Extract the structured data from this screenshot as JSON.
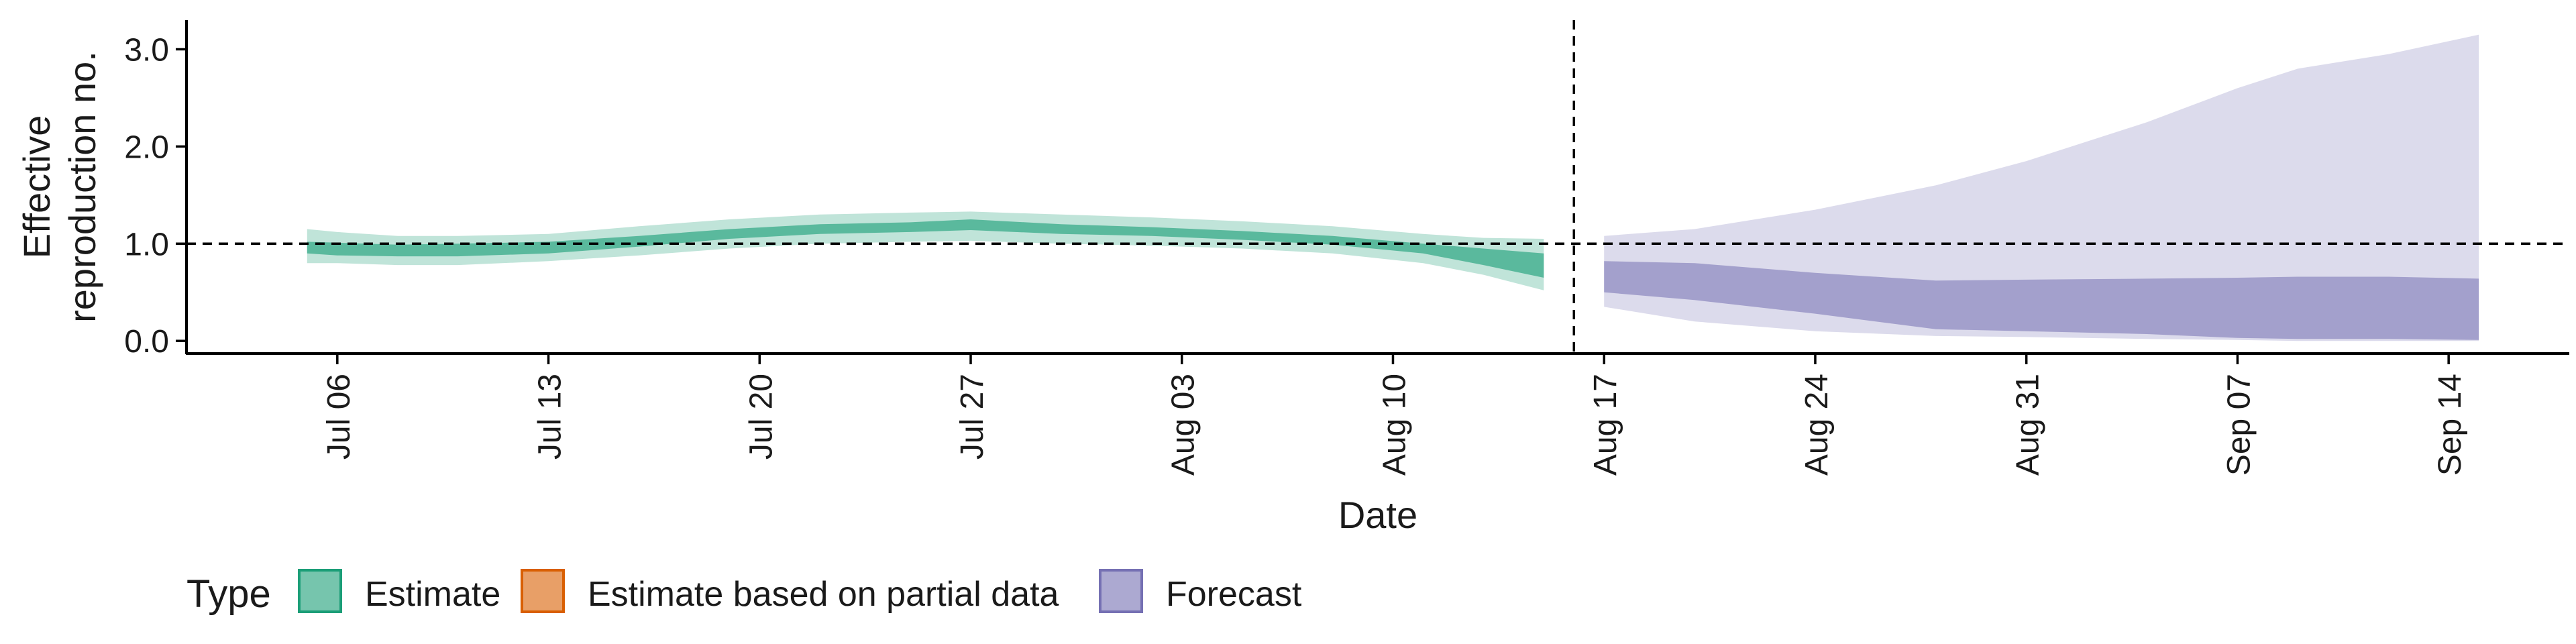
{
  "chart_data": {
    "type": "area",
    "xlabel": "Date",
    "ylabel_lines": [
      "Effective",
      "reproduction no."
    ],
    "y_ticks": [
      0.0,
      1.0,
      2.0,
      3.0
    ],
    "y_tick_labels": [
      "0.0",
      "1.0",
      "2.0",
      "3.0"
    ],
    "ylim": [
      -0.13,
      3.3
    ],
    "x_range": [
      "2020-07-01",
      "2020-09-18"
    ],
    "x_ticks": [
      "2020-07-06",
      "2020-07-13",
      "2020-07-20",
      "2020-07-27",
      "2020-08-03",
      "2020-08-10",
      "2020-08-17",
      "2020-08-24",
      "2020-08-31",
      "2020-09-07",
      "2020-09-14"
    ],
    "x_tick_labels": [
      "Jul 06",
      "Jul 13",
      "Jul 20",
      "Jul 27",
      "Aug 03",
      "Aug 10",
      "Aug 17",
      "Aug 24",
      "Aug 31",
      "Sep 07",
      "Sep 14"
    ],
    "reference_line_y": 1.0,
    "forecast_divider_date": "2020-08-16",
    "series": [
      {
        "name": "Estimate",
        "color": "#1b9e77",
        "points": [
          {
            "date": "2020-07-05",
            "outer": [
              0.8,
              1.15
            ],
            "inner": [
              0.9,
              1.02
            ]
          },
          {
            "date": "2020-07-06",
            "outer": [
              0.8,
              1.12
            ],
            "inner": [
              0.88,
              1.01
            ]
          },
          {
            "date": "2020-07-08",
            "outer": [
              0.78,
              1.08
            ],
            "inner": [
              0.87,
              0.99
            ]
          },
          {
            "date": "2020-07-10",
            "outer": [
              0.78,
              1.08
            ],
            "inner": [
              0.87,
              1.0
            ]
          },
          {
            "date": "2020-07-13",
            "outer": [
              0.82,
              1.1
            ],
            "inner": [
              0.9,
              1.02
            ]
          },
          {
            "date": "2020-07-16",
            "outer": [
              0.88,
              1.18
            ],
            "inner": [
              0.97,
              1.08
            ]
          },
          {
            "date": "2020-07-19",
            "outer": [
              0.95,
              1.25
            ],
            "inner": [
              1.05,
              1.15
            ]
          },
          {
            "date": "2020-07-22",
            "outer": [
              1.0,
              1.3
            ],
            "inner": [
              1.1,
              1.2
            ]
          },
          {
            "date": "2020-07-25",
            "outer": [
              1.02,
              1.32
            ],
            "inner": [
              1.12,
              1.22
            ]
          },
          {
            "date": "2020-07-27",
            "outer": [
              1.03,
              1.33
            ],
            "inner": [
              1.14,
              1.25
            ]
          },
          {
            "date": "2020-07-30",
            "outer": [
              1.0,
              1.3
            ],
            "inner": [
              1.1,
              1.2
            ]
          },
          {
            "date": "2020-08-02",
            "outer": [
              0.98,
              1.27
            ],
            "inner": [
              1.08,
              1.17
            ]
          },
          {
            "date": "2020-08-05",
            "outer": [
              0.95,
              1.23
            ],
            "inner": [
              1.04,
              1.13
            ]
          },
          {
            "date": "2020-08-08",
            "outer": [
              0.9,
              1.18
            ],
            "inner": [
              0.99,
              1.08
            ]
          },
          {
            "date": "2020-08-11",
            "outer": [
              0.8,
              1.1
            ],
            "inner": [
              0.9,
              1.0
            ]
          },
          {
            "date": "2020-08-13",
            "outer": [
              0.68,
              1.06
            ],
            "inner": [
              0.78,
              0.95
            ]
          },
          {
            "date": "2020-08-15",
            "outer": [
              0.52,
              1.05
            ],
            "inner": [
              0.65,
              0.9
            ]
          }
        ]
      },
      {
        "name": "Estimate based on partial data",
        "color": "#d95f02",
        "points": []
      },
      {
        "name": "Forecast",
        "color": "#7570b3",
        "points": [
          {
            "date": "2020-08-17",
            "outer": [
              0.35,
              1.08
            ],
            "inner": [
              0.5,
              0.82
            ]
          },
          {
            "date": "2020-08-20",
            "outer": [
              0.2,
              1.15
            ],
            "inner": [
              0.42,
              0.8
            ]
          },
          {
            "date": "2020-08-24",
            "outer": [
              0.1,
              1.35
            ],
            "inner": [
              0.28,
              0.7
            ]
          },
          {
            "date": "2020-08-28",
            "outer": [
              0.05,
              1.6
            ],
            "inner": [
              0.12,
              0.62
            ]
          },
          {
            "date": "2020-08-31",
            "outer": [
              0.04,
              1.85
            ],
            "inner": [
              0.1,
              0.63
            ]
          },
          {
            "date": "2020-09-04",
            "outer": [
              0.02,
              2.25
            ],
            "inner": [
              0.07,
              0.64
            ]
          },
          {
            "date": "2020-09-07",
            "outer": [
              0.01,
              2.6
            ],
            "inner": [
              0.03,
              0.65
            ]
          },
          {
            "date": "2020-09-09",
            "outer": [
              0.0,
              2.8
            ],
            "inner": [
              0.02,
              0.66
            ]
          },
          {
            "date": "2020-09-12",
            "outer": [
              0.0,
              2.95
            ],
            "inner": [
              0.02,
              0.66
            ]
          },
          {
            "date": "2020-09-15",
            "outer": [
              0.0,
              3.15
            ],
            "inner": [
              0.01,
              0.64
            ]
          }
        ]
      }
    ],
    "legend": {
      "title": "Type",
      "position": "bottom-left",
      "items": [
        {
          "label": "Estimate",
          "color": "#1b9e77"
        },
        {
          "label": "Estimate based on partial data",
          "color": "#d95f02"
        },
        {
          "label": "Forecast",
          "color": "#7570b3"
        }
      ]
    }
  }
}
